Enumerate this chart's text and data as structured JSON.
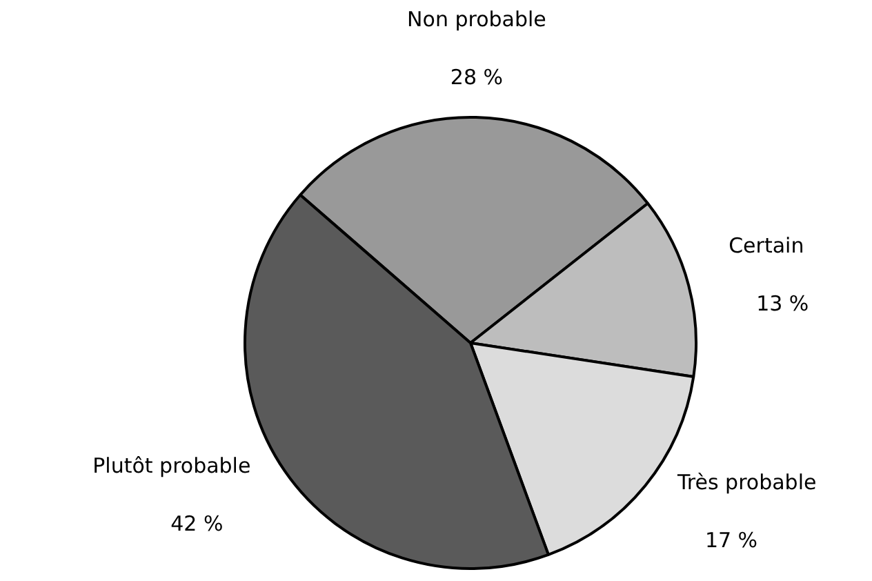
{
  "chart_data": {
    "type": "pie",
    "categories": [
      "Non probable",
      "Certain",
      "Très probable",
      "Plutôt probable"
    ],
    "values": [
      28,
      13,
      17,
      42
    ],
    "colors": [
      "#999999",
      "#bdbdbd",
      "#dcdcdc",
      "#5a5a5a"
    ],
    "value_labels": [
      "28 %",
      "13 %",
      "17 %",
      "42 %"
    ],
    "legend": false
  }
}
